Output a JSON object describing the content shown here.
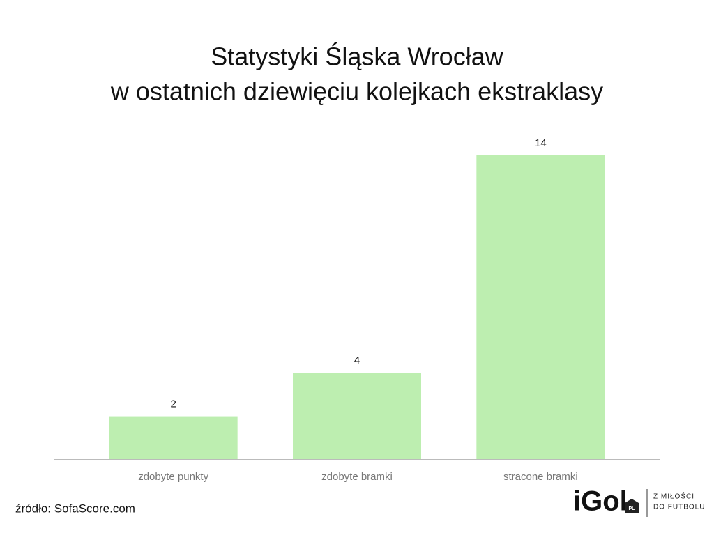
{
  "chart_data": {
    "type": "bar",
    "title": [
      "Statystyki Śląska Wrocław",
      "w ostatnich dziewięciu kolejkach ekstraklasy"
    ],
    "categories": [
      "zdobyte punkty",
      "zdobyte bramki",
      "stracone bramki"
    ],
    "values": [
      2,
      4,
      14
    ],
    "color": "#bdeeb0",
    "source": "źródło: SofaScore.com"
  },
  "logo": {
    "name": "iGol",
    "badge": "PL",
    "tagline": [
      "Z MIŁOŚCI",
      "DO FUTBOLU"
    ]
  }
}
